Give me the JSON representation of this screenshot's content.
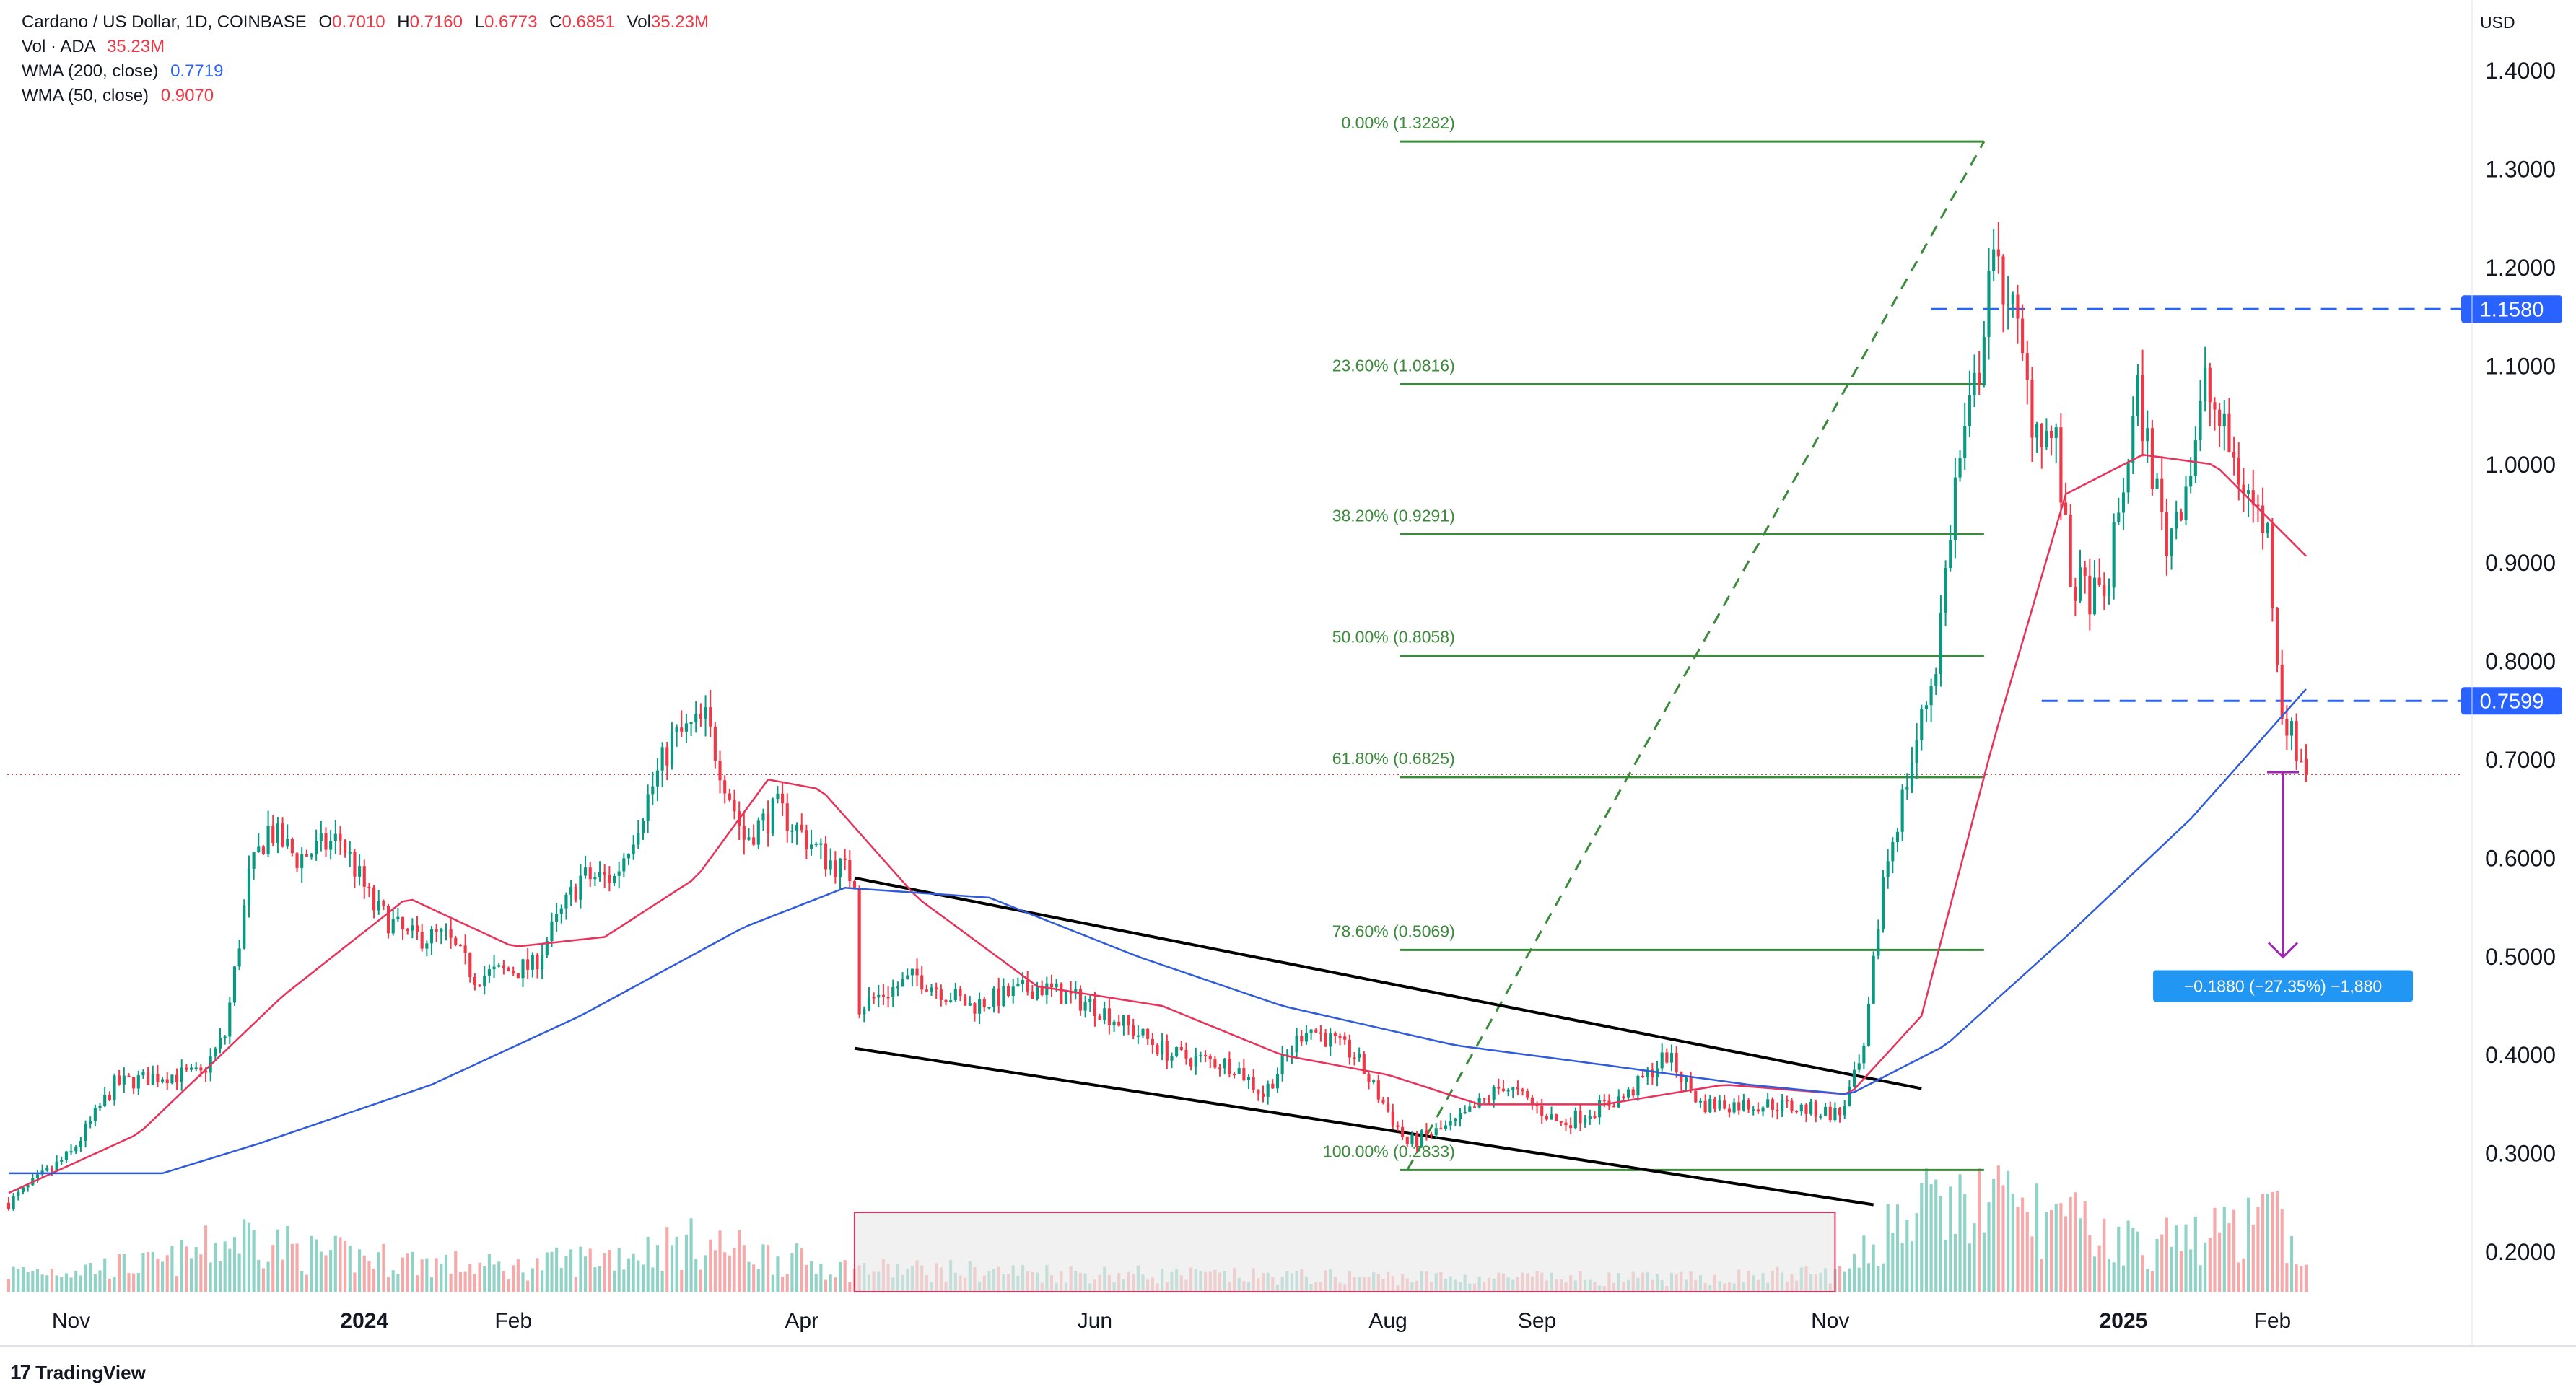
{
  "header": {
    "symbol": "Cardano / US Dollar, 1D, COINBASE",
    "o_label": "O",
    "o_value": "0.7010",
    "h_label": "H",
    "h_value": "0.7160",
    "l_label": "L",
    "l_value": "0.6773",
    "c_label": "C",
    "c_value": "0.6851",
    "vol_label": "Vol",
    "vol_value": "35.23M",
    "vol_row_label": "Vol · ADA",
    "vol_row_value": "35.23M",
    "wma200_label": "WMA (200, close)",
    "wma200_value": "0.7719",
    "wma50_label": "WMA (50, close)",
    "wma50_value": "0.9070"
  },
  "currency": "USD",
  "branding": {
    "logo_text": "TradingView",
    "logo_mark": "17"
  },
  "colors": {
    "up": "#089981",
    "down": "#f23645",
    "vol_up": "#8fd3c6",
    "vol_down": "#f7a9a9",
    "wma50": "#e8325a",
    "wma200": "#2f5bdc",
    "fib": "#3c8a3c",
    "dashed_level": "#2962ff",
    "channel": "#000000",
    "measure": "#9c27b0",
    "box_fill": "#e7e7e7",
    "box_border": "#e0315a"
  },
  "chart_data": {
    "type": "candlestick",
    "title": "Cardano / US Dollar, 1D, COINBASE",
    "ylabel": "USD",
    "ylim": [
      0.145,
      1.45
    ],
    "y_ticks": [
      "1.4000",
      "1.3000",
      "1.2000",
      "1.1000",
      "1.0000",
      "0.9000",
      "0.8000",
      "0.7000",
      "0.6000",
      "0.5000",
      "0.4000",
      "0.3000",
      "0.2000"
    ],
    "x_ticks": [
      {
        "label": "Nov",
        "date": "2023-11-01",
        "bold": false
      },
      {
        "label": "2024",
        "date": "2024-01-01",
        "bold": true
      },
      {
        "label": "Feb",
        "date": "2024-02-01",
        "bold": false
      },
      {
        "label": "Apr",
        "date": "2024-04-01",
        "bold": false
      },
      {
        "label": "Jun",
        "date": "2024-06-01",
        "bold": false
      },
      {
        "label": "Aug",
        "date": "2024-08-01",
        "bold": false
      },
      {
        "label": "Sep",
        "date": "2024-09-01",
        "bold": false
      },
      {
        "label": "Nov",
        "date": "2024-11-01",
        "bold": false
      },
      {
        "label": "2025",
        "date": "2025-01-01",
        "bold": true
      },
      {
        "label": "Feb",
        "date": "2025-02-01",
        "bold": false
      }
    ],
    "date_range": [
      "2023-10-19",
      "2025-02-08"
    ],
    "price_path": [
      [
        "2023-10-19",
        0.25
      ],
      [
        "2023-11-01",
        0.3
      ],
      [
        "2023-11-10",
        0.37
      ],
      [
        "2023-11-20",
        0.38
      ],
      [
        "2023-11-28",
        0.38
      ],
      [
        "2023-12-03",
        0.42
      ],
      [
        "2023-12-08",
        0.58
      ],
      [
        "2023-12-12",
        0.63
      ],
      [
        "2023-12-18",
        0.6
      ],
      [
        "2023-12-27",
        0.62
      ],
      [
        "2024-01-03",
        0.55
      ],
      [
        "2024-01-10",
        0.52
      ],
      [
        "2024-01-18",
        0.52
      ],
      [
        "2024-01-24",
        0.48
      ],
      [
        "2024-02-05",
        0.49
      ],
      [
        "2024-02-15",
        0.58
      ],
      [
        "2024-02-22",
        0.58
      ],
      [
        "2024-02-28",
        0.65
      ],
      [
        "2024-03-05",
        0.72
      ],
      [
        "2024-03-12",
        0.74
      ],
      [
        "2024-03-20",
        0.62
      ],
      [
        "2024-03-27",
        0.65
      ],
      [
        "2024-04-06",
        0.6
      ],
      [
        "2024-04-12",
        0.58
      ],
      [
        "2024-04-13",
        0.45
      ],
      [
        "2024-04-25",
        0.48
      ],
      [
        "2024-05-06",
        0.45
      ],
      [
        "2024-05-20",
        0.47
      ],
      [
        "2024-06-01",
        0.45
      ],
      [
        "2024-06-17",
        0.4
      ],
      [
        "2024-06-30",
        0.39
      ],
      [
        "2024-07-06",
        0.36
      ],
      [
        "2024-07-15",
        0.43
      ],
      [
        "2024-07-25",
        0.4
      ],
      [
        "2024-08-05",
        0.31
      ],
      [
        "2024-08-15",
        0.33
      ],
      [
        "2024-08-25",
        0.37
      ],
      [
        "2024-09-06",
        0.33
      ],
      [
        "2024-09-20",
        0.36
      ],
      [
        "2024-09-28",
        0.4
      ],
      [
        "2024-10-05",
        0.35
      ],
      [
        "2024-10-20",
        0.35
      ],
      [
        "2024-11-03",
        0.34
      ],
      [
        "2024-11-08",
        0.4
      ],
      [
        "2024-11-12",
        0.58
      ],
      [
        "2024-11-18",
        0.7
      ],
      [
        "2024-11-23",
        0.8
      ],
      [
        "2024-11-27",
        0.98
      ],
      [
        "2024-12-02",
        1.1
      ],
      [
        "2024-12-04",
        1.2
      ],
      [
        "2024-12-08",
        1.18
      ],
      [
        "2024-12-13",
        1.05
      ],
      [
        "2024-12-18",
        1.02
      ],
      [
        "2024-12-21",
        0.88
      ],
      [
        "2024-12-28",
        0.86
      ],
      [
        "2025-01-04",
        1.07
      ],
      [
        "2025-01-10",
        0.92
      ],
      [
        "2025-01-15",
        1.0
      ],
      [
        "2025-01-18",
        1.08
      ],
      [
        "2025-01-25",
        0.99
      ],
      [
        "2025-01-31",
        0.93
      ],
      [
        "2025-02-03",
        0.75
      ],
      [
        "2025-02-08",
        0.6851
      ]
    ],
    "wma50_path": [
      [
        "2023-10-19",
        0.26
      ],
      [
        "2023-11-15",
        0.32
      ],
      [
        "2023-12-15",
        0.46
      ],
      [
        "2024-01-10",
        0.56
      ],
      [
        "2024-02-01",
        0.51
      ],
      [
        "2024-02-20",
        0.52
      ],
      [
        "2024-03-10",
        0.58
      ],
      [
        "2024-03-25",
        0.68
      ],
      [
        "2024-04-05",
        0.67
      ],
      [
        "2024-04-25",
        0.56
      ],
      [
        "2024-05-20",
        0.47
      ],
      [
        "2024-06-15",
        0.45
      ],
      [
        "2024-07-10",
        0.4
      ],
      [
        "2024-08-01",
        0.38
      ],
      [
        "2024-08-20",
        0.35
      ],
      [
        "2024-09-15",
        0.35
      ],
      [
        "2024-10-10",
        0.37
      ],
      [
        "2024-11-05",
        0.36
      ],
      [
        "2024-11-20",
        0.44
      ],
      [
        "2024-12-05",
        0.72
      ],
      [
        "2024-12-20",
        0.97
      ],
      [
        "2025-01-05",
        1.01
      ],
      [
        "2025-01-20",
        1.0
      ],
      [
        "2025-02-08",
        0.907
      ]
    ],
    "wma200_path": [
      [
        "2023-10-19",
        0.28
      ],
      [
        "2023-11-20",
        0.28
      ],
      [
        "2023-12-10",
        0.31
      ],
      [
        "2024-01-15",
        0.37
      ],
      [
        "2024-02-15",
        0.44
      ],
      [
        "2024-03-20",
        0.53
      ],
      [
        "2024-04-10",
        0.57
      ],
      [
        "2024-05-10",
        0.56
      ],
      [
        "2024-06-10",
        0.5
      ],
      [
        "2024-07-10",
        0.45
      ],
      [
        "2024-08-15",
        0.41
      ],
      [
        "2024-09-15",
        0.39
      ],
      [
        "2024-10-15",
        0.37
      ],
      [
        "2024-11-05",
        0.36
      ],
      [
        "2024-11-25",
        0.41
      ],
      [
        "2024-12-20",
        0.52
      ],
      [
        "2025-01-15",
        0.64
      ],
      [
        "2025-02-08",
        0.7719
      ]
    ],
    "volume_path": [
      [
        "2023-10-19",
        0.15
      ],
      [
        "2023-11-20",
        0.22
      ],
      [
        "2023-12-08",
        0.45
      ],
      [
        "2023-12-20",
        0.3
      ],
      [
        "2024-02-01",
        0.18
      ],
      [
        "2024-03-10",
        0.38
      ],
      [
        "2024-04-10",
        0.18
      ],
      [
        "2024-07-01",
        0.12
      ],
      [
        "2024-10-01",
        0.1
      ],
      [
        "2024-11-05",
        0.15
      ],
      [
        "2024-11-15",
        0.6
      ],
      [
        "2024-12-05",
        0.7
      ],
      [
        "2025-01-05",
        0.35
      ],
      [
        "2025-02-03",
        0.55
      ],
      [
        "2025-02-08",
        0.25
      ]
    ],
    "fibonacci": [
      {
        "label": "0.00% (1.3282)",
        "price": 1.3282
      },
      {
        "label": "23.60% (1.0816)",
        "price": 1.0816
      },
      {
        "label": "38.20% (0.9291)",
        "price": 0.9291
      },
      {
        "label": "50.00% (0.8058)",
        "price": 0.8058
      },
      {
        "label": "61.80% (0.6825)",
        "price": 0.6825
      },
      {
        "label": "78.60% (0.5069)",
        "price": 0.5069
      },
      {
        "label": "100.00% (0.2833)",
        "price": 0.2833
      }
    ],
    "fib_span": [
      "2024-08-05",
      "2024-12-03"
    ],
    "trend_line": {
      "from": [
        "2024-08-05",
        0.2833
      ],
      "to": [
        "2024-12-03",
        1.3282
      ]
    },
    "channel_upper": {
      "from": [
        "2024-04-12",
        0.58
      ],
      "to": [
        "2024-11-20",
        0.366
      ]
    },
    "channel_lower": {
      "from": [
        "2024-04-12",
        0.407
      ],
      "to": [
        "2024-11-10",
        0.248
      ]
    },
    "dashed_levels": [
      {
        "price": 1.158,
        "label": "1.1580",
        "from": "2024-11-22"
      },
      {
        "price": 0.7599,
        "label": "0.7599",
        "from": "2024-12-15"
      }
    ],
    "last_price_line": 0.6851,
    "measure": {
      "date": "2025-02-02",
      "from": 0.6875,
      "to": 0.4995,
      "label": "−0.1880 (−27.35%) −1,880"
    },
    "volume_box": {
      "from": "2024-04-12",
      "to": "2024-11-02"
    }
  }
}
